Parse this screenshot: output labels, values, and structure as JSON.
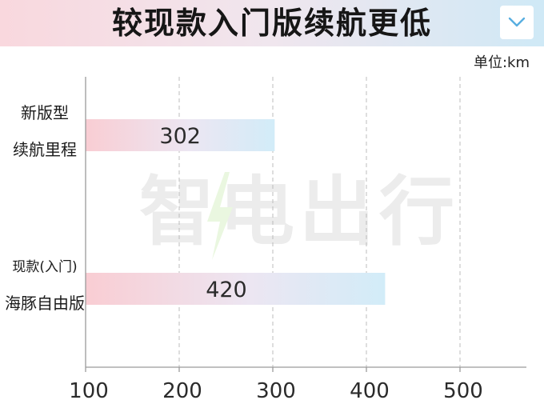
{
  "header": {
    "title": "较现款入门版续航更低",
    "chevron_icon": "chevron-down-icon"
  },
  "unit_label": "单位:km",
  "watermark": "智电出行",
  "colors": {
    "bar_start": "#f9cdd3",
    "bar_end": "#d2ecf8",
    "axis": "#9a9a9a",
    "grid": "#bdbdbd",
    "chevron": "#58aee0"
  },
  "chart_data": {
    "type": "bar",
    "orientation": "horizontal",
    "categories": [
      [
        "新版型",
        "续航里程"
      ],
      [
        "现款(入门)",
        "海豚自由版"
      ]
    ],
    "values": [
      302,
      420
    ],
    "data_labels": [
      "302",
      "420"
    ],
    "xlim": [
      100,
      550
    ],
    "xticks": [
      100,
      200,
      300,
      400,
      500
    ],
    "xtick_labels": [
      "100",
      "200",
      "300",
      "400",
      "500"
    ],
    "grid": "vertical-dashed",
    "unit": "km"
  }
}
